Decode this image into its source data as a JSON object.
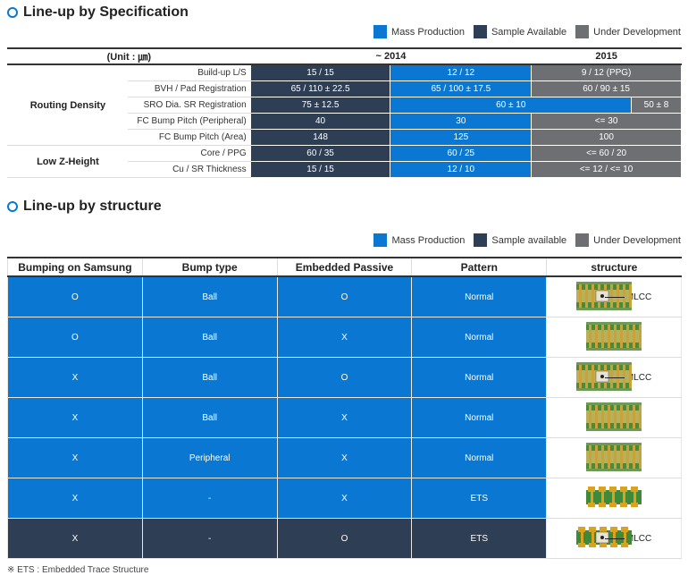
{
  "spec_section": {
    "title": "Line-up by Specification",
    "legend": {
      "mass": "Mass Production",
      "sample": "Sample Available",
      "dev": "Under Development"
    },
    "unit_header": "(Unit : ㎛)",
    "period_2014": "~ 2014",
    "period_2015": "2015",
    "groups": {
      "routing": "Routing Density",
      "lowz": "Low Z-Height"
    },
    "rows": [
      {
        "label": "Build-up L/S",
        "c1": "15 / 15",
        "c2": "12 / 12",
        "c3": "9 / 12 (PPG)"
      },
      {
        "label": "BVH / Pad Registration",
        "c1": "65 / 110 ± 22.5",
        "c2": "65 / 100 ± 17.5",
        "c3": "60 / 90 ± 15"
      },
      {
        "label": "SRO Dia. SR Registration",
        "c1": "75 ± 12.5",
        "c2": "60 ± 10",
        "c3": "50 ± 8"
      },
      {
        "label": "FC Bump Pitch (Peripheral)",
        "c1": "40",
        "c2": "30",
        "c3": "<= 30"
      },
      {
        "label": "FC Bump Pitch (Area)",
        "c1": "148",
        "c2": "125",
        "c3": "100"
      },
      {
        "label": "Core / PPG",
        "c1": "60 / 35",
        "c2": "60 / 25",
        "c3": "<= 60 / 20"
      },
      {
        "label": "Cu / SR Thickness",
        "c1": "15 / 15",
        "c2": "12 / 10",
        "c3": "<= 12 / <= 10"
      }
    ]
  },
  "structure_section": {
    "title": "Line-up by structure",
    "legend": {
      "mass": "Mass Production",
      "sample": "Sample available",
      "dev": "Under Development"
    },
    "headers": [
      "Bumping on Samsung",
      "Bump type",
      "Embedded Passive",
      "Pattern",
      "structure"
    ],
    "rows": [
      {
        "bumping": "O",
        "bump": "Ball",
        "passive": "O",
        "pattern": "Normal",
        "mlcc": "MLCC"
      },
      {
        "bumping": "O",
        "bump": "Ball",
        "passive": "X",
        "pattern": "Normal",
        "mlcc": ""
      },
      {
        "bumping": "X",
        "bump": "Ball",
        "passive": "O",
        "pattern": "Normal",
        "mlcc": "MLCC"
      },
      {
        "bumping": "X",
        "bump": "Ball",
        "passive": "X",
        "pattern": "Normal",
        "mlcc": ""
      },
      {
        "bumping": "X",
        "bump": "Peripheral",
        "passive": "X",
        "pattern": "Normal",
        "mlcc": ""
      },
      {
        "bumping": "X",
        "bump": "-",
        "passive": "X",
        "pattern": "ETS",
        "mlcc": ""
      },
      {
        "bumping": "X",
        "bump": "-",
        "passive": "O",
        "pattern": "ETS",
        "mlcc": "MLCC"
      }
    ],
    "note": "※ ETS : Embedded Trace Structure"
  },
  "colors": {
    "mass": "#0a78d2",
    "sample": "#2e3e55",
    "dev": "#6d6f73"
  }
}
